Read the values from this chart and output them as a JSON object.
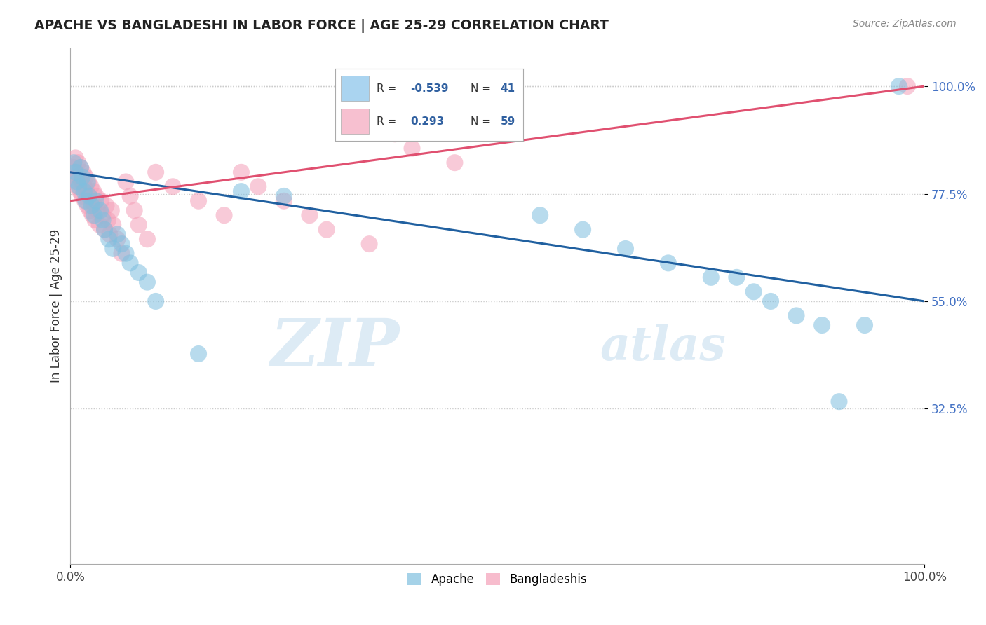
{
  "title": "APACHE VS BANGLADESHI IN LABOR FORCE | AGE 25-29 CORRELATION CHART",
  "source": "Source: ZipAtlas.com",
  "ylabel": "In Labor Force | Age 25-29",
  "xlim": [
    0.0,
    1.0
  ],
  "ylim": [
    0.0,
    1.08
  ],
  "ytick_positions": [
    0.325,
    0.55,
    0.775,
    1.0
  ],
  "ytick_labels": [
    "32.5%",
    "55.0%",
    "77.5%",
    "100.0%"
  ],
  "apache_R": -0.539,
  "apache_N": 41,
  "bangladeshi_R": 0.293,
  "bangladeshi_N": 59,
  "apache_color": "#7fbfdf",
  "bangladeshi_color": "#f4a0b8",
  "trend_apache_color": "#2060a0",
  "trend_bangladeshi_color": "#e05070",
  "legend_apache_color": "#aad4f0",
  "legend_bangladeshi_color": "#f7c0d0",
  "grid_color": "#cccccc",
  "background_color": "#ffffff",
  "apache_x": [
    0.004,
    0.006,
    0.008,
    0.01,
    0.012,
    0.014,
    0.016,
    0.018,
    0.02,
    0.022,
    0.025,
    0.028,
    0.03,
    0.035,
    0.038,
    0.04,
    0.045,
    0.05,
    0.055,
    0.06,
    0.065,
    0.07,
    0.08,
    0.09,
    0.1,
    0.15,
    0.2,
    0.25,
    0.55,
    0.6,
    0.65,
    0.7,
    0.75,
    0.78,
    0.8,
    0.82,
    0.85,
    0.88,
    0.9,
    0.93,
    0.97
  ],
  "apache_y": [
    0.84,
    0.82,
    0.8,
    0.79,
    0.83,
    0.81,
    0.78,
    0.76,
    0.8,
    0.77,
    0.75,
    0.73,
    0.76,
    0.74,
    0.72,
    0.7,
    0.68,
    0.66,
    0.69,
    0.67,
    0.65,
    0.63,
    0.61,
    0.59,
    0.55,
    0.44,
    0.78,
    0.77,
    0.73,
    0.7,
    0.66,
    0.63,
    0.6,
    0.6,
    0.57,
    0.55,
    0.52,
    0.5,
    0.34,
    0.5,
    1.0
  ],
  "bangladeshi_x": [
    0.002,
    0.004,
    0.005,
    0.006,
    0.007,
    0.008,
    0.009,
    0.01,
    0.011,
    0.012,
    0.013,
    0.014,
    0.015,
    0.016,
    0.017,
    0.018,
    0.019,
    0.02,
    0.021,
    0.022,
    0.023,
    0.024,
    0.025,
    0.026,
    0.027,
    0.028,
    0.029,
    0.03,
    0.032,
    0.034,
    0.036,
    0.038,
    0.04,
    0.042,
    0.044,
    0.046,
    0.048,
    0.05,
    0.055,
    0.06,
    0.065,
    0.07,
    0.075,
    0.08,
    0.09,
    0.1,
    0.12,
    0.15,
    0.18,
    0.2,
    0.22,
    0.25,
    0.28,
    0.3,
    0.35,
    0.38,
    0.4,
    0.45,
    0.98
  ],
  "bangladeshi_y": [
    0.81,
    0.83,
    0.8,
    0.85,
    0.82,
    0.79,
    0.84,
    0.81,
    0.78,
    0.83,
    0.8,
    0.77,
    0.82,
    0.79,
    0.76,
    0.81,
    0.78,
    0.75,
    0.8,
    0.77,
    0.74,
    0.79,
    0.76,
    0.73,
    0.78,
    0.75,
    0.72,
    0.77,
    0.74,
    0.71,
    0.76,
    0.73,
    0.7,
    0.75,
    0.72,
    0.69,
    0.74,
    0.71,
    0.68,
    0.65,
    0.8,
    0.77,
    0.74,
    0.71,
    0.68,
    0.82,
    0.79,
    0.76,
    0.73,
    0.82,
    0.79,
    0.76,
    0.73,
    0.7,
    0.67,
    0.9,
    0.87,
    0.84,
    1.0
  ],
  "apache_trend_x0": 0.0,
  "apache_trend_y0": 0.82,
  "apache_trend_x1": 1.0,
  "apache_trend_y1": 0.55,
  "bangladeshi_trend_x0": 0.0,
  "bangladeshi_trend_y0": 0.76,
  "bangladeshi_trend_x1": 1.0,
  "bangladeshi_trend_y1": 1.0
}
